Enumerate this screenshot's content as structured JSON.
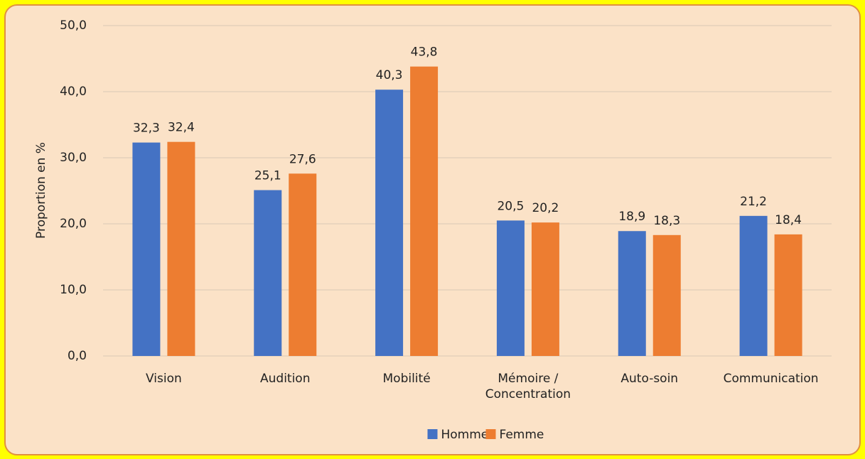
{
  "chart_data": {
    "type": "bar",
    "y_label": "Proportion en %",
    "categories": [
      "Vision",
      "Audition",
      "Mobilité",
      "Mémoire / Concentration",
      "Auto-soin",
      "Communication"
    ],
    "series": [
      {
        "name": "Homme",
        "color": "#4472c4",
        "values": [
          32.3,
          25.1,
          40.3,
          20.5,
          18.9,
          21.2
        ],
        "value_labels": [
          "32,3",
          "25,1",
          "40,3",
          "20,5",
          "18,9",
          "21,2"
        ]
      },
      {
        "name": "Femme",
        "color": "#ed7d31",
        "values": [
          32.4,
          27.6,
          43.8,
          20.2,
          18.3,
          18.4
        ],
        "value_labels": [
          "32,4",
          "27,6",
          "43,8",
          "20,2",
          "18,3",
          "18,4"
        ]
      }
    ],
    "ylim": [
      0,
      50
    ],
    "yticks": [
      {
        "value": 0,
        "label": "0,0"
      },
      {
        "value": 10,
        "label": "10,0"
      },
      {
        "value": 20,
        "label": "20,0"
      },
      {
        "value": 30,
        "label": "30,0"
      },
      {
        "value": 40,
        "label": "40,0"
      },
      {
        "value": 50,
        "label": "50,0"
      }
    ],
    "grid": true,
    "legend": "bottom"
  }
}
